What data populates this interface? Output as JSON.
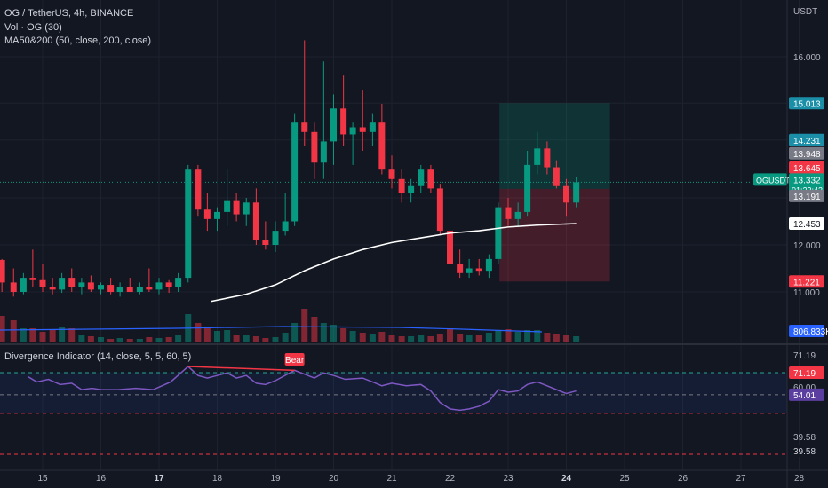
{
  "header": {
    "symbol_line": "OG / TetherUS, 4h, BINANCE",
    "volume_line": "Vol · OG (30)",
    "ma_line": "MA50&200 (50, close, 200, close)",
    "currency": "USDT"
  },
  "indicator": {
    "title": "Divergence Indicator (14, close, 5, 5, 60, 5)",
    "bear_label": "Bear",
    "level_upper": "71.19",
    "level_mid": "60.00",
    "level_lower": "39.58",
    "current_value": "54.01",
    "upper_ticks": [
      "71.19",
      "71.19"
    ],
    "lower_ticks": [
      "39.58",
      "39.58"
    ]
  },
  "price_axis": {
    "ticks": [
      "16.000",
      "13.000",
      "12.000",
      "11.000"
    ],
    "badges": {
      "target": "15.013",
      "high": "14.231",
      "r1": "13.948",
      "r2": "13.645",
      "symbol": "OGUSDT",
      "last": "13.332",
      "countdown": "01:22:42",
      "s1": "13.191",
      "ma": "12.453",
      "stop": "11.221",
      "volume": "806.833K"
    }
  },
  "time_axis": {
    "labels": [
      "15",
      "16",
      "17",
      "18",
      "19",
      "20",
      "21",
      "22",
      "23",
      "24",
      "25",
      "26",
      "27",
      "28"
    ],
    "bold": [
      "17",
      "24"
    ]
  },
  "colors": {
    "background": "#131722",
    "up": "#089981",
    "down": "#f23645",
    "ma": "#ffffff",
    "rsi": "#7e57c2",
    "volume_ma": "#2962ff",
    "bear": "#f23645"
  },
  "chart_data": {
    "type": "candlestick",
    "timeframe": "4h",
    "y_range": [
      10.8,
      16.6
    ],
    "x_range": [
      14.75,
      28.1
    ],
    "candles": [
      {
        "t": 14.3,
        "o": 11.68,
        "h": 11.7,
        "l": 11.0,
        "c": 11.2
      },
      {
        "t": 14.5,
        "o": 11.2,
        "h": 11.5,
        "l": 10.9,
        "c": 11.0
      },
      {
        "t": 14.67,
        "o": 11.0,
        "h": 11.4,
        "l": 10.95,
        "c": 11.3
      },
      {
        "t": 14.83,
        "o": 11.3,
        "h": 11.9,
        "l": 11.1,
        "c": 11.25
      },
      {
        "t": 15.0,
        "o": 11.25,
        "h": 11.6,
        "l": 11.0,
        "c": 11.1
      },
      {
        "t": 15.17,
        "o": 11.1,
        "h": 11.3,
        "l": 10.95,
        "c": 11.05
      },
      {
        "t": 15.33,
        "o": 11.05,
        "h": 11.4,
        "l": 10.98,
        "c": 11.3
      },
      {
        "t": 15.5,
        "o": 11.3,
        "h": 11.5,
        "l": 11.0,
        "c": 11.1
      },
      {
        "t": 15.67,
        "o": 11.1,
        "h": 11.3,
        "l": 10.95,
        "c": 11.2
      },
      {
        "t": 15.83,
        "o": 11.2,
        "h": 11.35,
        "l": 11.0,
        "c": 11.05
      },
      {
        "t": 16.0,
        "o": 11.05,
        "h": 11.2,
        "l": 10.95,
        "c": 11.15
      },
      {
        "t": 16.17,
        "o": 11.15,
        "h": 11.3,
        "l": 10.95,
        "c": 11.0
      },
      {
        "t": 16.33,
        "o": 11.0,
        "h": 11.2,
        "l": 10.9,
        "c": 11.1
      },
      {
        "t": 16.5,
        "o": 11.1,
        "h": 11.3,
        "l": 11.0,
        "c": 11.0
      },
      {
        "t": 16.67,
        "o": 11.0,
        "h": 11.2,
        "l": 10.95,
        "c": 11.1
      },
      {
        "t": 16.83,
        "o": 11.1,
        "h": 11.5,
        "l": 11.0,
        "c": 11.05
      },
      {
        "t": 17.0,
        "o": 11.05,
        "h": 11.3,
        "l": 10.95,
        "c": 11.2
      },
      {
        "t": 17.17,
        "o": 11.2,
        "h": 11.25,
        "l": 10.98,
        "c": 11.1
      },
      {
        "t": 17.33,
        "o": 11.1,
        "h": 11.4,
        "l": 11.0,
        "c": 11.3
      },
      {
        "t": 17.5,
        "o": 11.3,
        "h": 13.7,
        "l": 11.2,
        "c": 13.6
      },
      {
        "t": 17.67,
        "o": 13.6,
        "h": 13.7,
        "l": 12.6,
        "c": 12.75
      },
      {
        "t": 17.83,
        "o": 12.75,
        "h": 13.1,
        "l": 12.3,
        "c": 12.55
      },
      {
        "t": 18.0,
        "o": 12.55,
        "h": 12.8,
        "l": 12.3,
        "c": 12.7
      },
      {
        "t": 18.17,
        "o": 12.7,
        "h": 13.6,
        "l": 12.4,
        "c": 12.95
      },
      {
        "t": 18.33,
        "o": 12.95,
        "h": 13.1,
        "l": 12.5,
        "c": 12.65
      },
      {
        "t": 18.5,
        "o": 12.65,
        "h": 13.0,
        "l": 12.4,
        "c": 12.9
      },
      {
        "t": 18.67,
        "o": 12.9,
        "h": 13.2,
        "l": 12.0,
        "c": 12.1
      },
      {
        "t": 18.83,
        "o": 12.1,
        "h": 12.5,
        "l": 11.9,
        "c": 12.0
      },
      {
        "t": 19.0,
        "o": 12.0,
        "h": 12.5,
        "l": 11.85,
        "c": 12.3
      },
      {
        "t": 19.17,
        "o": 12.3,
        "h": 13.1,
        "l": 12.2,
        "c": 12.5
      },
      {
        "t": 19.33,
        "o": 12.5,
        "h": 14.8,
        "l": 12.4,
        "c": 14.6
      },
      {
        "t": 19.5,
        "o": 14.6,
        "h": 16.35,
        "l": 14.1,
        "c": 14.4
      },
      {
        "t": 19.67,
        "o": 14.4,
        "h": 14.6,
        "l": 13.4,
        "c": 13.75
      },
      {
        "t": 19.83,
        "o": 13.75,
        "h": 15.9,
        "l": 13.4,
        "c": 14.2
      },
      {
        "t": 20.0,
        "o": 14.2,
        "h": 15.2,
        "l": 13.7,
        "c": 14.9
      },
      {
        "t": 20.17,
        "o": 14.9,
        "h": 15.6,
        "l": 14.1,
        "c": 14.35
      },
      {
        "t": 20.33,
        "o": 14.35,
        "h": 14.6,
        "l": 13.7,
        "c": 14.5
      },
      {
        "t": 20.5,
        "o": 14.5,
        "h": 15.3,
        "l": 14.0,
        "c": 14.4
      },
      {
        "t": 20.67,
        "o": 14.4,
        "h": 14.8,
        "l": 14.1,
        "c": 14.6
      },
      {
        "t": 20.83,
        "o": 14.6,
        "h": 15.0,
        "l": 13.5,
        "c": 13.6
      },
      {
        "t": 21.0,
        "o": 13.6,
        "h": 13.9,
        "l": 13.2,
        "c": 13.4
      },
      {
        "t": 21.17,
        "o": 13.4,
        "h": 13.6,
        "l": 12.9,
        "c": 13.1
      },
      {
        "t": 21.33,
        "o": 13.1,
        "h": 13.4,
        "l": 12.9,
        "c": 13.25
      },
      {
        "t": 21.5,
        "o": 13.25,
        "h": 13.7,
        "l": 13.1,
        "c": 13.6
      },
      {
        "t": 21.67,
        "o": 13.6,
        "h": 13.7,
        "l": 13.1,
        "c": 13.2
      },
      {
        "t": 21.83,
        "o": 13.2,
        "h": 13.3,
        "l": 12.2,
        "c": 12.3
      },
      {
        "t": 22.0,
        "o": 12.3,
        "h": 12.6,
        "l": 11.3,
        "c": 11.6
      },
      {
        "t": 22.17,
        "o": 11.6,
        "h": 11.9,
        "l": 11.3,
        "c": 11.4
      },
      {
        "t": 22.33,
        "o": 11.4,
        "h": 11.7,
        "l": 11.3,
        "c": 11.5
      },
      {
        "t": 22.5,
        "o": 11.5,
        "h": 11.7,
        "l": 11.35,
        "c": 11.45
      },
      {
        "t": 22.67,
        "o": 11.45,
        "h": 11.8,
        "l": 11.3,
        "c": 11.7
      },
      {
        "t": 22.83,
        "o": 11.7,
        "h": 12.9,
        "l": 11.6,
        "c": 12.8
      },
      {
        "t": 23.0,
        "o": 12.8,
        "h": 13.0,
        "l": 12.4,
        "c": 12.55
      },
      {
        "t": 23.17,
        "o": 12.55,
        "h": 12.9,
        "l": 12.4,
        "c": 12.7
      },
      {
        "t": 23.33,
        "o": 12.7,
        "h": 14.0,
        "l": 12.6,
        "c": 13.7
      },
      {
        "t": 23.5,
        "o": 13.7,
        "h": 14.4,
        "l": 13.5,
        "c": 14.05
      },
      {
        "t": 23.67,
        "o": 14.05,
        "h": 14.2,
        "l": 13.5,
        "c": 13.65
      },
      {
        "t": 23.83,
        "o": 13.65,
        "h": 13.8,
        "l": 13.2,
        "c": 13.25
      },
      {
        "t": 24.0,
        "o": 13.25,
        "h": 13.4,
        "l": 12.6,
        "c": 12.9
      },
      {
        "t": 24.17,
        "o": 12.9,
        "h": 13.45,
        "l": 12.8,
        "c": 13.332
      }
    ],
    "ma50": [
      {
        "t": 17.9,
        "v": 10.8
      },
      {
        "t": 18.5,
        "v": 10.95
      },
      {
        "t": 19.0,
        "v": 11.15
      },
      {
        "t": 19.5,
        "v": 11.45
      },
      {
        "t": 20.0,
        "v": 11.7
      },
      {
        "t": 20.5,
        "v": 11.9
      },
      {
        "t": 21.0,
        "v": 12.05
      },
      {
        "t": 21.5,
        "v": 12.15
      },
      {
        "t": 22.0,
        "v": 12.25
      },
      {
        "t": 22.5,
        "v": 12.3
      },
      {
        "t": 23.0,
        "v": 12.38
      },
      {
        "t": 23.5,
        "v": 12.42
      },
      {
        "t": 24.17,
        "v": 12.453
      }
    ],
    "position": {
      "entry": 13.191,
      "target": 15.013,
      "stop": 11.221,
      "t_start": 22.85,
      "t_end": 24.75
    },
    "volume": [
      3,
      2.5,
      1.6,
      1.6,
      1.2,
      1.4,
      1.7,
      1.6,
      0.8,
      0.7,
      0.6,
      0.4,
      0.5,
      0.4,
      0.4,
      0.6,
      0.5,
      0.6,
      0.8,
      3.2,
      2.2,
      1.6,
      1.3,
      1.4,
      0.9,
      0.8,
      0.7,
      0.5,
      0.6,
      1.1,
      2.2,
      3.8,
      2.9,
      2.2,
      2.0,
      1.6,
      1.3,
      1.1,
      1.0,
      1.2,
      0.9,
      0.7,
      0.7,
      0.8,
      0.7,
      1.0,
      1.6,
      1.0,
      0.8,
      0.9,
      1.1,
      1.4,
      1.5,
      1.2,
      1.4,
      1.4,
      1.1,
      1.0,
      0.9,
      0.7
    ],
    "divergence": [
      {
        "t": 14.75,
        "v": 68
      },
      {
        "t": 14.9,
        "v": 64
      },
      {
        "t": 15.1,
        "v": 66
      },
      {
        "t": 15.3,
        "v": 62
      },
      {
        "t": 15.5,
        "v": 63
      },
      {
        "t": 15.67,
        "v": 58
      },
      {
        "t": 15.85,
        "v": 59
      },
      {
        "t": 16.0,
        "v": 58
      },
      {
        "t": 16.3,
        "v": 58
      },
      {
        "t": 16.6,
        "v": 59
      },
      {
        "t": 16.9,
        "v": 58
      },
      {
        "t": 17.2,
        "v": 64
      },
      {
        "t": 17.5,
        "v": 76
      },
      {
        "t": 17.67,
        "v": 69
      },
      {
        "t": 17.83,
        "v": 67
      },
      {
        "t": 18.0,
        "v": 69
      },
      {
        "t": 18.17,
        "v": 71
      },
      {
        "t": 18.33,
        "v": 67
      },
      {
        "t": 18.5,
        "v": 69
      },
      {
        "t": 18.67,
        "v": 63
      },
      {
        "t": 18.83,
        "v": 62
      },
      {
        "t": 19.0,
        "v": 65
      },
      {
        "t": 19.33,
        "v": 73
      },
      {
        "t": 19.5,
        "v": 70
      },
      {
        "t": 19.67,
        "v": 67
      },
      {
        "t": 19.83,
        "v": 71
      },
      {
        "t": 20.0,
        "v": 69
      },
      {
        "t": 20.2,
        "v": 66
      },
      {
        "t": 20.5,
        "v": 67
      },
      {
        "t": 20.67,
        "v": 64
      },
      {
        "t": 20.83,
        "v": 61
      },
      {
        "t": 21.0,
        "v": 63
      },
      {
        "t": 21.25,
        "v": 61
      },
      {
        "t": 21.5,
        "v": 62
      },
      {
        "t": 21.67,
        "v": 57
      },
      {
        "t": 21.83,
        "v": 48
      },
      {
        "t": 22.0,
        "v": 43
      },
      {
        "t": 22.17,
        "v": 42
      },
      {
        "t": 22.33,
        "v": 43
      },
      {
        "t": 22.5,
        "v": 45
      },
      {
        "t": 22.67,
        "v": 49
      },
      {
        "t": 22.83,
        "v": 58
      },
      {
        "t": 23.0,
        "v": 56
      },
      {
        "t": 23.17,
        "v": 57
      },
      {
        "t": 23.33,
        "v": 62
      },
      {
        "t": 23.5,
        "v": 64
      },
      {
        "t": 23.67,
        "v": 61
      },
      {
        "t": 23.83,
        "v": 58
      },
      {
        "t": 24.0,
        "v": 55
      },
      {
        "t": 24.17,
        "v": 57
      }
    ],
    "bear_divergence": [
      {
        "t": 17.5,
        "v": 76
      },
      {
        "t": 19.33,
        "v": 73
      }
    ]
  }
}
